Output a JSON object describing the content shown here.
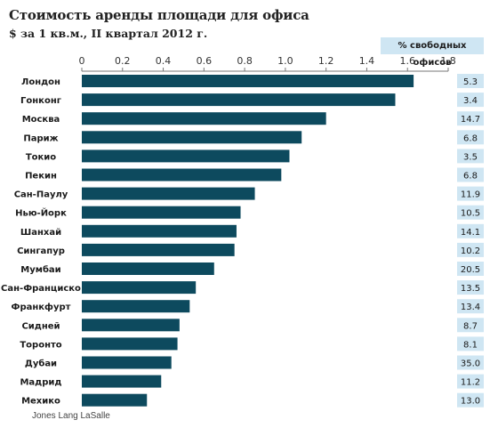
{
  "header": {
    "title": "Стоимость аренды площади для офиса",
    "subtitle": "$ за 1 кв.м., II квартал 2012 г.",
    "vacancy_column_label": "% свободных офисов"
  },
  "source": "Jones Lang LaSalle",
  "colors": {
    "bar": "#0d4a5e",
    "vacancy_cell": "#cfe6f3",
    "axis": "#777777"
  },
  "chart_data": {
    "type": "bar",
    "orientation": "horizontal",
    "title": "Стоимость аренды площади для офиса",
    "subtitle": "$ за 1 кв.м., II квартал 2012 г.",
    "xlim": [
      0,
      1.8
    ],
    "x_ticks": [
      "0",
      "0.2",
      "0.4",
      "0.6",
      "0.8",
      "1.0",
      "1.2",
      "1.4",
      "1.6",
      "1.8"
    ],
    "grid": false,
    "categories": [
      "Лондон",
      "Гонконг",
      "Москва",
      "Париж",
      "Токио",
      "Пекин",
      "Сан-Паулу",
      "Нью-Йорк",
      "Шанхай",
      "Сингапур",
      "Мумбаи",
      "Сан-Франциско",
      "Франкфурт",
      "Сидней",
      "Торонто",
      "Дубаи",
      "Мадрид",
      "Мехико"
    ],
    "values": [
      1.63,
      1.54,
      1.2,
      1.08,
      1.02,
      0.98,
      0.85,
      0.78,
      0.76,
      0.75,
      0.65,
      0.56,
      0.53,
      0.48,
      0.47,
      0.44,
      0.39,
      0.32
    ],
    "vacancy_label": "% свободных офисов",
    "vacancy": [
      "5.3",
      "3.4",
      "14.7",
      "6.8",
      "3.5",
      "6.8",
      "11.9",
      "10.5",
      "14.1",
      "10.2",
      "20.5",
      "13.5",
      "13.4",
      "8.7",
      "8.1",
      "35.0",
      "11.2",
      "13.0"
    ]
  }
}
